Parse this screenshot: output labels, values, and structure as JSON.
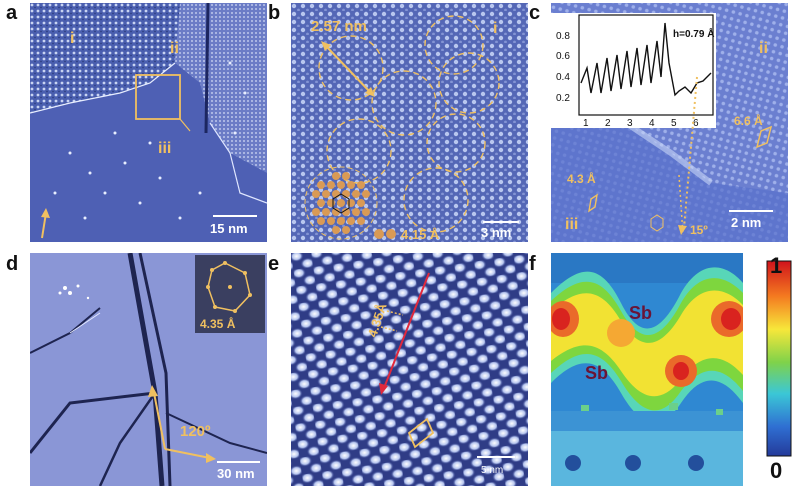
{
  "colors": {
    "stm_blue": "#4d5ea8",
    "stm_light": "#c9d6f5",
    "annotation": "#f0c060",
    "arrow_red": "#e0283c"
  },
  "panels": {
    "a": {
      "label": "a",
      "region_i": "i",
      "region_ii": "ii",
      "region_iii": "iii",
      "scale": "15 nm"
    },
    "b": {
      "label": "b",
      "size": "2.57 nm",
      "region": "i",
      "lattice": "4.15 Å",
      "scale": "3 nm"
    },
    "c": {
      "label": "c",
      "region_ii": "ii",
      "region_iii": "iii",
      "height": "h=0.79 Å",
      "spacing_large": "6.6 Å",
      "spacing_small": "4.3 Å",
      "angle": "15º",
      "scale": "2 nm",
      "inset_y_ticks": [
        "0.8",
        "0.6",
        "0.4",
        "0.2"
      ],
      "inset_x_ticks": [
        "1",
        "2",
        "3",
        "4",
        "5",
        "6"
      ]
    },
    "d": {
      "label": "d",
      "inset_lattice": "4.35 Å",
      "angle": "120º",
      "scale": "30 nm"
    },
    "e": {
      "label": "e",
      "spacing": "4.35Å",
      "scale": "5 nm"
    },
    "f": {
      "label": "f",
      "atom_top": "Sb",
      "atom_bottom": "Sb"
    }
  },
  "colorbar": {
    "max": "1",
    "min": "0"
  }
}
